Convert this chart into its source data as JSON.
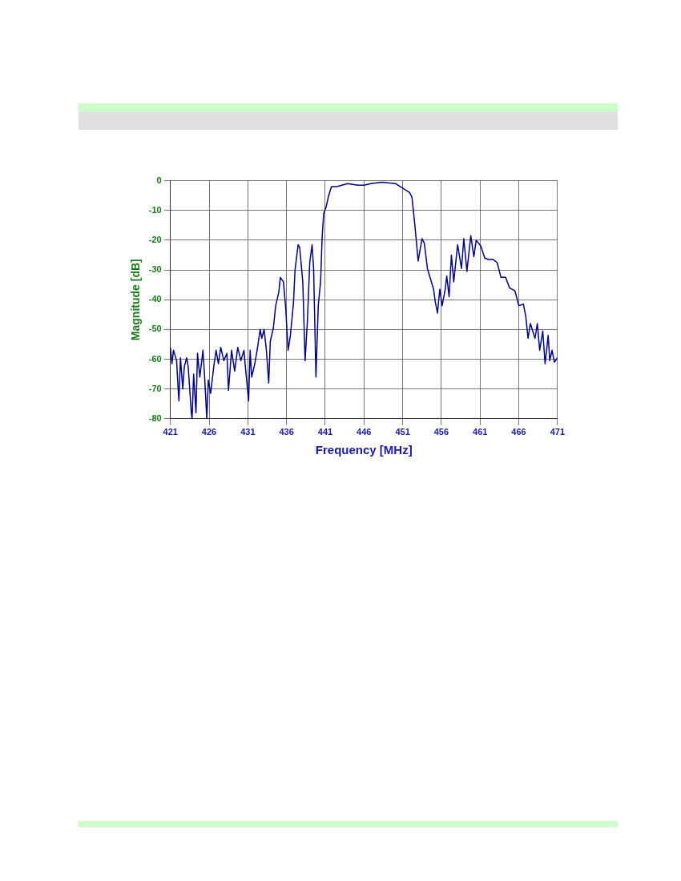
{
  "chart_data": {
    "type": "line",
    "xlabel": "Frequency [MHz]",
    "ylabel": "Magnitude [dB]",
    "xlim": [
      421,
      471
    ],
    "xticks": [
      421,
      426,
      431,
      436,
      441,
      446,
      451,
      456,
      461,
      466,
      471
    ],
    "ylim": [
      -80,
      0
    ],
    "yticks": [
      0,
      -10,
      -20,
      -30,
      -40,
      -50,
      -60,
      -70,
      -80
    ],
    "grid": true,
    "legend": false,
    "marker": "none",
    "line_style": "solid",
    "series": [
      {
        "color": "#000080",
        "x": [
          421,
          421.2,
          421.4,
          421.8,
          422,
          422.1,
          422.3,
          422.6,
          422.8,
          423.1,
          423.3,
          423.7,
          423.8,
          424,
          424.3,
          424.5,
          424.8,
          425,
          425.2,
          425.4,
          425.7,
          425.9,
          426.2,
          426.6,
          426.9,
          427.2,
          427.5,
          427.9,
          428.3,
          428.5,
          428.9,
          429.3,
          429.7,
          430.1,
          430.5,
          430.7,
          431.1,
          431.3,
          431.5,
          431.9,
          432.2,
          432.6,
          432.8,
          433.1,
          433.4,
          433.7,
          433.9,
          434.3,
          434.6,
          435,
          435.2,
          435.6,
          435.9,
          436.2,
          436.5,
          436.9,
          437.1,
          437.5,
          437.7,
          438.1,
          438.4,
          438.7,
          439,
          439.3,
          439.5,
          439.8,
          440.1,
          440.4,
          440.6,
          440.8,
          441.1,
          441.4,
          441.8,
          442.5,
          443.9,
          445.2,
          446,
          446.9,
          448.3,
          450.1,
          451,
          451.9,
          452.2,
          452.6,
          453,
          453.5,
          453.8,
          454.2,
          454.6,
          455,
          455.2,
          455.5,
          455.8,
          456.1,
          456.5,
          456.7,
          457,
          457.3,
          457.6,
          458.1,
          458.6,
          458.9,
          459.3,
          459.8,
          460.2,
          460.5,
          461.1,
          461.6,
          462.1,
          462.7,
          463.2,
          463.7,
          464.3,
          464.8,
          465.5,
          466,
          466.6,
          466.9,
          467.2,
          467.5,
          468.1,
          468.4,
          468.7,
          469.1,
          469.4,
          469.8,
          470,
          470.3,
          470.6,
          471
        ],
        "values": [
          -56,
          -61.5,
          -57,
          -60.5,
          -70,
          -74,
          -59.5,
          -70,
          -62.5,
          -59.5,
          -62.5,
          -78,
          -80,
          -65,
          -78,
          -58,
          -66,
          -61.5,
          -57,
          -65,
          -80,
          -67,
          -71.5,
          -62.5,
          -57,
          -61.5,
          -56,
          -60.5,
          -58,
          -70.5,
          -57,
          -64,
          -56,
          -60.5,
          -57,
          -63,
          -74,
          -57,
          -66,
          -61.5,
          -57,
          -50,
          -53,
          -50,
          -57,
          -68,
          -54,
          -49.5,
          -42,
          -37.5,
          -32.5,
          -34,
          -43,
          -57,
          -52,
          -41,
          -30,
          -21.5,
          -22.5,
          -34,
          -60.5,
          -47,
          -27.5,
          -21.5,
          -29.5,
          -66,
          -42,
          -34,
          -19,
          -11,
          -9,
          -5.5,
          -2,
          -2,
          -1,
          -1.5,
          -1.5,
          -1,
          -0.5,
          -1,
          -2.5,
          -4,
          -5.5,
          -15.5,
          -27,
          -19.5,
          -21,
          -29.5,
          -33,
          -36.5,
          -40.5,
          -44.5,
          -36.5,
          -42,
          -36.5,
          -32,
          -39,
          -25,
          -34,
          -21.5,
          -29.5,
          -19.5,
          -30.5,
          -18.5,
          -25.5,
          -20,
          -22,
          -26,
          -26.5,
          -26.5,
          -27.5,
          -32.5,
          -32.5,
          -36,
          -37,
          -42,
          -41.5,
          -45.5,
          -53,
          -48,
          -53,
          -48,
          -57,
          -50.5,
          -61.5,
          -52,
          -60.5,
          -57,
          -61,
          -59.5
        ]
      }
    ]
  }
}
